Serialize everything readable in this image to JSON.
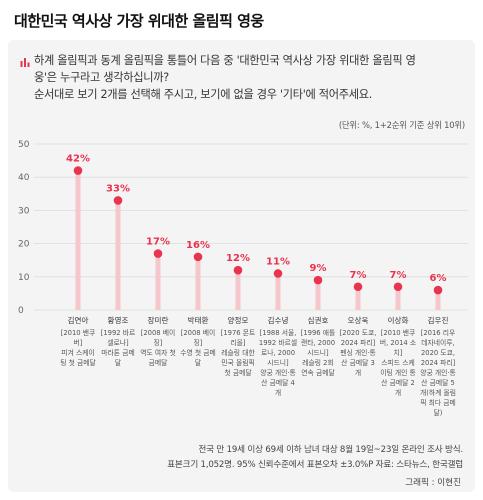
{
  "header": {
    "title": "대한민국 역사상 가장 위대한 올림픽 영웅"
  },
  "question": {
    "line1": "하계 올림픽과 동계 올림픽을 통틀어 다음 중 '대한민국 역사상 가장 위대한 올림픽 영",
    "line2": "웅'은 누구라고 생각하십니까?",
    "line3": "순서대로 보기 2개를 선택해 주시고, 보기에 없을 경우 '기타'에 적어주세요."
  },
  "unit_note": "(단위: %, 1+2순위 기준 상위 10위)",
  "chart_data": {
    "type": "bar",
    "ylim": [
      0,
      50
    ],
    "yticks": [
      0,
      10,
      20,
      30,
      40,
      50
    ],
    "accent_color": "#e8344e",
    "stem_color": "#f6c6cd",
    "categories": [
      {
        "name": "김연아",
        "desc": [
          "[2010 밴쿠",
          "버]",
          "피겨 스케이",
          "팅 첫 금메달"
        ]
      },
      {
        "name": "황영조",
        "desc": [
          "[1992 바르",
          "셀로나]",
          "마라톤 금메",
          "달"
        ]
      },
      {
        "name": "장미란",
        "desc": [
          "[2008 베이",
          "징]",
          "역도 여자 첫",
          "금메달"
        ]
      },
      {
        "name": "박태환",
        "desc": [
          "[2008 베이",
          "징]",
          "수영 첫 금메",
          "달"
        ]
      },
      {
        "name": "양정모",
        "desc": [
          "[1976 몬트",
          "리올]",
          "레슬링 대한",
          "민국 올림픽",
          "첫 금메달"
        ]
      },
      {
        "name": "김수녕",
        "desc": [
          "[1988 서울,",
          "1992 바르셀",
          "로나, 2000",
          "시드니]",
          "양궁 개인·통",
          "산 금메달 4",
          "개"
        ]
      },
      {
        "name": "심권호",
        "desc": [
          "[1996 애틀",
          "랜타, 2000",
          "시드니]",
          "레슬링 2회",
          "연속 금메달"
        ]
      },
      {
        "name": "오상욱",
        "desc": [
          "[2020 도쿄,",
          "2024 파리]",
          "펜싱 개인·통",
          "산 금메달 3",
          "개"
        ]
      },
      {
        "name": "이상화",
        "desc": [
          "[2010 밴쿠",
          "버, 2014 소",
          "치]",
          "스피드 스케",
          "이팅 개인 통",
          "산 금메달 2",
          "개"
        ]
      },
      {
        "name": "김우진",
        "desc": [
          "[2016 리우",
          "데자네이루,",
          "2020 도쿄,",
          "2024 파리]",
          "양궁 개인·통",
          "산 금메달 5",
          "개(하계 올림",
          "픽 최다 금메",
          "달)"
        ]
      }
    ],
    "values": [
      42,
      33,
      17,
      16,
      12,
      11,
      9,
      7,
      7,
      6
    ],
    "value_labels": [
      "42%",
      "33%",
      "17%",
      "16%",
      "12%",
      "11%",
      "9%",
      "7%",
      "7%",
      "6%"
    ]
  },
  "notes": {
    "line1": "전국 만 19세 이상 69세 이하 남녀 대상 8월 19일~23일 온라인 조사 방식.",
    "line2": "표본크기 1,052명. 95% 신뢰수준에서 표본오차 ±3.0%P 자료: 스타뉴스, 한국갤럽"
  },
  "credit": "그래픽 : 이현진"
}
